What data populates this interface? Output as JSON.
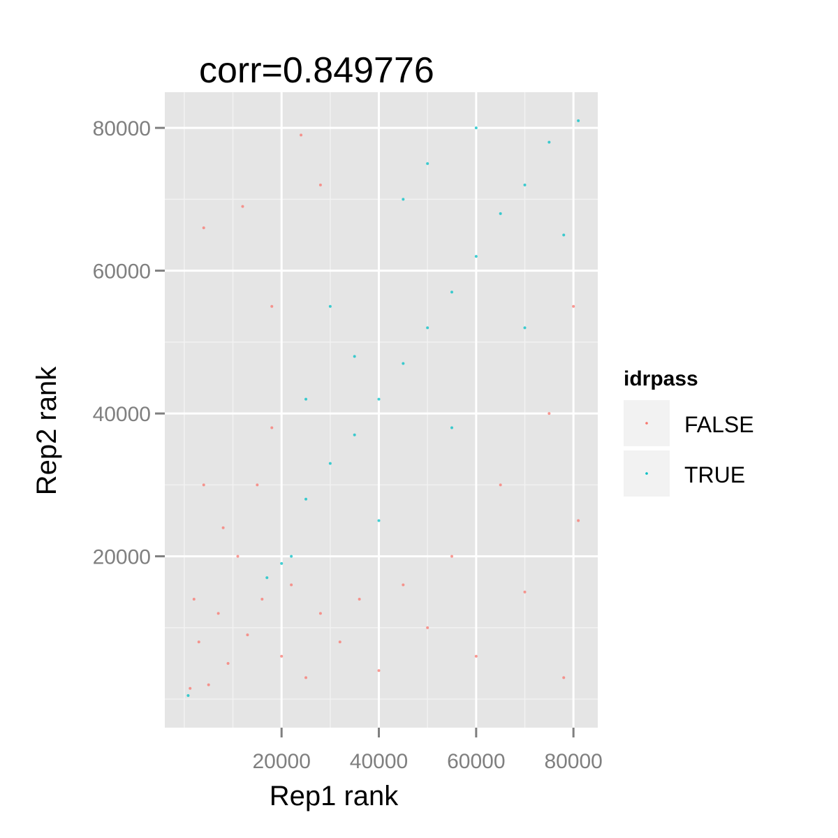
{
  "chart_data": {
    "type": "scatter",
    "title": "corr=0.849776",
    "xlabel": "Rep1 rank",
    "ylabel": "Rep2 rank",
    "xlim": [
      -4000,
      85000
    ],
    "ylim": [
      -4000,
      85000
    ],
    "x_ticks": [
      20000,
      40000,
      60000,
      80000
    ],
    "y_ticks": [
      20000,
      40000,
      60000,
      80000
    ],
    "x_tick_labels": [
      "20000",
      "40000",
      "60000",
      "80000"
    ],
    "y_tick_labels": [
      "20000",
      "40000",
      "60000",
      "80000"
    ],
    "grid": true,
    "legend": {
      "title": "idrpass",
      "position": "right",
      "entries": [
        "FALSE",
        "TRUE"
      ]
    },
    "series": [
      {
        "name": "FALSE",
        "color": "#F8766D",
        "points": [
          [
            1200,
            1500
          ],
          [
            3000,
            8000
          ],
          [
            5000,
            2000
          ],
          [
            7000,
            12000
          ],
          [
            9000,
            5000
          ],
          [
            11000,
            20000
          ],
          [
            13000,
            9000
          ],
          [
            15000,
            30000
          ],
          [
            16000,
            14000
          ],
          [
            18000,
            38000
          ],
          [
            20000,
            6000
          ],
          [
            22000,
            16000
          ],
          [
            25000,
            3000
          ],
          [
            28000,
            12000
          ],
          [
            32000,
            8000
          ],
          [
            36000,
            14000
          ],
          [
            40000,
            4000
          ],
          [
            45000,
            16000
          ],
          [
            50000,
            10000
          ],
          [
            55000,
            20000
          ],
          [
            60000,
            6000
          ],
          [
            65000,
            30000
          ],
          [
            70000,
            15000
          ],
          [
            75000,
            40000
          ],
          [
            78000,
            3000
          ],
          [
            80000,
            55000
          ],
          [
            81000,
            25000
          ],
          [
            8000,
            24000
          ],
          [
            4000,
            30000
          ],
          [
            2000,
            14000
          ],
          [
            24000,
            79000
          ],
          [
            28000,
            72000
          ],
          [
            12000,
            69000
          ],
          [
            4000,
            66000
          ],
          [
            18000,
            55000
          ]
        ]
      },
      {
        "name": "TRUE",
        "color": "#00BFC4",
        "points": [
          [
            81000,
            81000
          ],
          [
            75000,
            78000
          ],
          [
            70000,
            72000
          ],
          [
            65000,
            68000
          ],
          [
            60000,
            62000
          ],
          [
            55000,
            57000
          ],
          [
            50000,
            52000
          ],
          [
            45000,
            47000
          ],
          [
            40000,
            42000
          ],
          [
            35000,
            37000
          ],
          [
            30000,
            33000
          ],
          [
            25000,
            28000
          ],
          [
            22000,
            20000
          ],
          [
            17000,
            17000
          ],
          [
            20000,
            19000
          ],
          [
            30000,
            55000
          ],
          [
            45000,
            70000
          ],
          [
            60000,
            80000
          ],
          [
            40000,
            25000
          ],
          [
            55000,
            38000
          ],
          [
            70000,
            52000
          ],
          [
            78000,
            65000
          ],
          [
            50000,
            75000
          ],
          [
            35000,
            48000
          ],
          [
            25000,
            42000
          ],
          [
            800,
            500
          ]
        ]
      }
    ]
  }
}
